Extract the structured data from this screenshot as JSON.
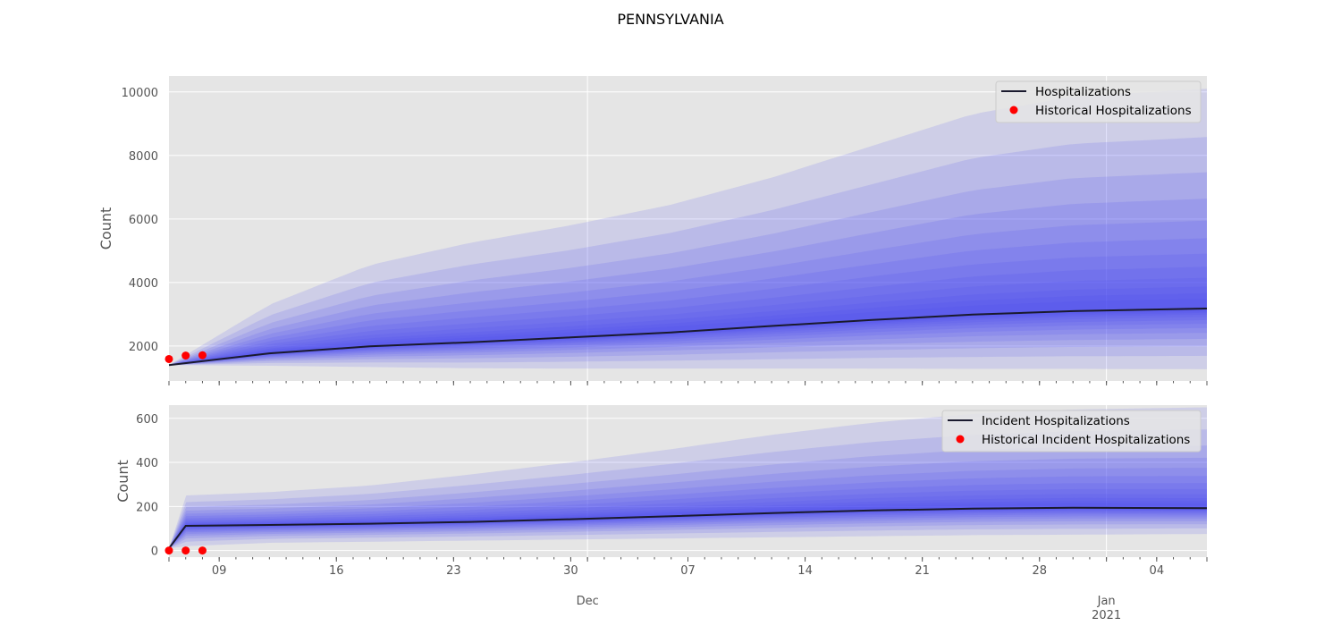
{
  "figure_title": "PENNSYLVANIA",
  "colors": {
    "background": "#e5e5e5",
    "grid": "#ffffff",
    "median_line": "#1a1a2e",
    "band": "#4b4bf0",
    "historical": "#ff0000"
  },
  "x_axis": {
    "range": [
      "2020-11-06",
      "2021-01-07"
    ],
    "tick_dates": [
      "2020-11-09",
      "2020-11-16",
      "2020-11-23",
      "2020-11-30",
      "2020-12-07",
      "2020-12-14",
      "2020-12-21",
      "2020-12-28",
      "2021-01-04"
    ],
    "tick_labels": [
      "09",
      "16",
      "23",
      "30",
      "07",
      "14",
      "21",
      "28",
      "04"
    ],
    "month_label_dates": [
      "2020-12-01",
      "2021-01-01"
    ],
    "month_labels": [
      "Dec",
      "Jan"
    ],
    "year_label": "2021"
  },
  "chart_data": [
    {
      "type": "area",
      "title": "",
      "ylabel": "Count",
      "ylim": [
        900,
        10500
      ],
      "yticks": [
        2000,
        4000,
        6000,
        8000,
        10000
      ],
      "ytick_labels": [
        "2000",
        "4000",
        "6000",
        "8000",
        "10000"
      ],
      "grid": true,
      "legend_position": "top-right",
      "legend": [
        "Hospitalizations",
        "Historical Hospitalizations"
      ],
      "x": [
        "2020-11-06",
        "2020-11-12",
        "2020-11-18",
        "2020-11-24",
        "2020-11-30",
        "2020-12-06",
        "2020-12-12",
        "2020-12-18",
        "2020-12-24",
        "2020-12-30",
        "2021-01-07"
      ],
      "median": [
        1400,
        1770,
        1990,
        2120,
        2270,
        2430,
        2630,
        2820,
        2990,
        3100,
        3180
      ],
      "band_lower": [
        1400,
        1380,
        1340,
        1300,
        1290,
        1290,
        1290,
        1290,
        1280,
        1280,
        1270
      ],
      "band_upper": [
        1400,
        3300,
        4550,
        5250,
        5800,
        6450,
        7300,
        8300,
        9300,
        9850,
        10100
      ],
      "series": [
        {
          "name": "Hospitalizations",
          "x": [
            "2020-11-06",
            "2020-11-12",
            "2020-11-18",
            "2020-11-24",
            "2020-11-30",
            "2020-12-06",
            "2020-12-12",
            "2020-12-18",
            "2020-12-24",
            "2020-12-30",
            "2021-01-07"
          ],
          "values": [
            1400,
            1770,
            1990,
            2120,
            2270,
            2430,
            2630,
            2820,
            2990,
            3100,
            3180
          ]
        },
        {
          "name": "Historical Hospitalizations",
          "x": [
            "2020-11-06",
            "2020-11-07",
            "2020-11-08"
          ],
          "values": [
            1590,
            1700,
            1710
          ]
        }
      ]
    },
    {
      "type": "area",
      "title": "",
      "ylabel": "Count",
      "ylim": [
        -30,
        660
      ],
      "yticks": [
        0,
        200,
        400,
        600
      ],
      "ytick_labels": [
        "0",
        "200",
        "400",
        "600"
      ],
      "grid": true,
      "legend_position": "top-right",
      "legend": [
        "Incident Hospitalizations",
        "Historical Incident Hospitalizations"
      ],
      "x": [
        "2020-11-06",
        "2020-11-07",
        "2020-11-12",
        "2020-11-18",
        "2020-11-24",
        "2020-11-30",
        "2020-12-06",
        "2020-12-12",
        "2020-12-18",
        "2020-12-24",
        "2020-12-30",
        "2021-01-07"
      ],
      "median": [
        10,
        112,
        116,
        122,
        130,
        142,
        156,
        170,
        182,
        190,
        194,
        192
      ],
      "band_lower": [
        10,
        20,
        35,
        40,
        45,
        50,
        55,
        60,
        65,
        70,
        72,
        75
      ],
      "band_upper": [
        10,
        250,
        265,
        295,
        345,
        400,
        460,
        525,
        580,
        620,
        640,
        650
      ],
      "series": [
        {
          "name": "Incident Hospitalizations",
          "x": [
            "2020-11-06",
            "2020-11-07",
            "2020-11-12",
            "2020-11-18",
            "2020-11-24",
            "2020-11-30",
            "2020-12-06",
            "2020-12-12",
            "2020-12-18",
            "2020-12-24",
            "2020-12-30",
            "2021-01-07"
          ],
          "values": [
            10,
            112,
            116,
            122,
            130,
            142,
            156,
            170,
            182,
            190,
            194,
            192
          ]
        },
        {
          "name": "Historical Incident Hospitalizations",
          "x": [
            "2020-11-06",
            "2020-11-07",
            "2020-11-08"
          ],
          "values": [
            0,
            0,
            0
          ]
        }
      ]
    }
  ]
}
